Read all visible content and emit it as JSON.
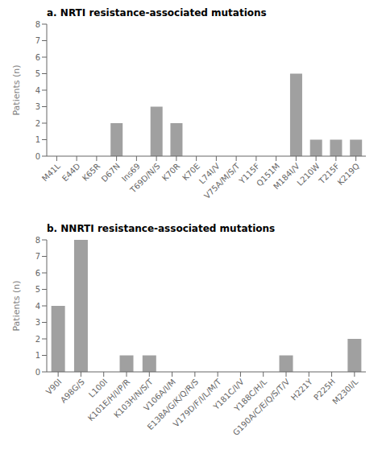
{
  "chart_data": [
    {
      "type": "bar",
      "title": "a. NRTI resistance-associated mutations",
      "categories": [
        "M41L",
        "E44D",
        "K65R",
        "D67N",
        "Ins69",
        "T69D/N/S",
        "K70R",
        "K70E",
        "L74I/V",
        "V75A/M/S/T",
        "Y115F",
        "Q151M",
        "M184I/V",
        "L210W",
        "T215F",
        "K219Q"
      ],
      "values": [
        0,
        0,
        0,
        2,
        0,
        3,
        2,
        0,
        0,
        0,
        0,
        0,
        5,
        1,
        1,
        1
      ],
      "color": "#a0a0a0",
      "ylabel": "Patients (n)",
      "ylim": [
        0,
        8
      ],
      "yticks": [
        0,
        1,
        2,
        3,
        4,
        5,
        6,
        7,
        8
      ],
      "grid": false
    },
    {
      "type": "bar",
      "title": "b. NNRTI resistance-associated mutations",
      "categories": [
        "V90I",
        "A98G/S",
        "L100I",
        "K101E/H/I/P/R",
        "K103H/N/S/T",
        "V106A/I/M",
        "E138A/G/K/Q/R/S",
        "V179D/F/I/L/M/T",
        "Y181C/I/V",
        "Y188C/H/L",
        "G190A/C/E/Q/S/T/V",
        "H221Y",
        "P225H",
        "M230I/L"
      ],
      "values": [
        4,
        8,
        0,
        1,
        1,
        0,
        0,
        0,
        0,
        0,
        1,
        0,
        0,
        2
      ],
      "color": "#a0a0a0",
      "ylabel": "Patients (n)",
      "ylim": [
        0,
        8
      ],
      "yticks": [
        0,
        1,
        2,
        3,
        4,
        5,
        6,
        7,
        8
      ],
      "grid": false
    }
  ]
}
